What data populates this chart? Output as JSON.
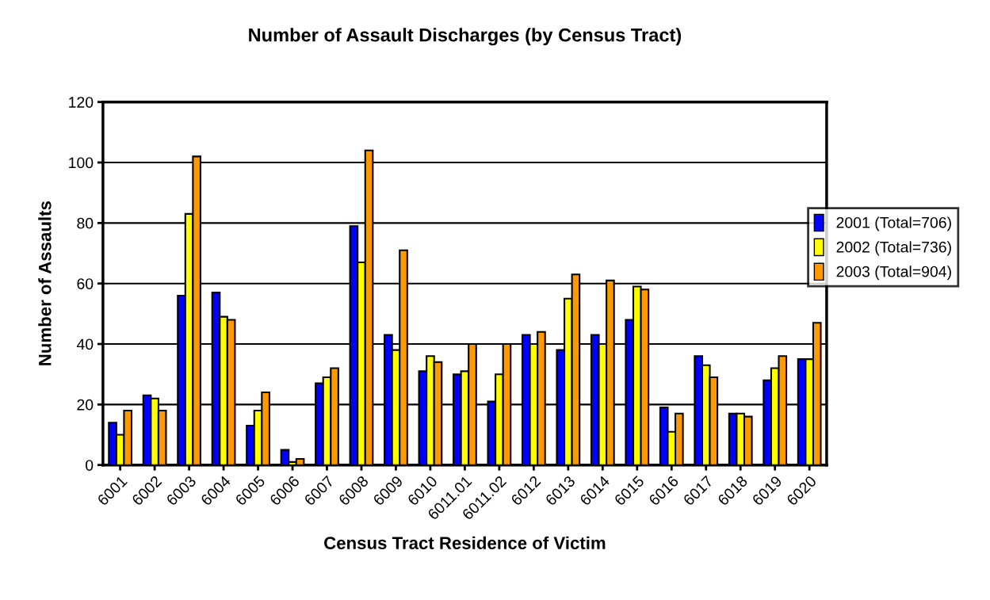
{
  "chart_data": {
    "type": "bar",
    "title": "Number of Assault Discharges (by Census Tract)",
    "xlabel": "Census Tract Residence of Victim",
    "ylabel": "Number of Assaults",
    "categories": [
      "6001",
      "6002",
      "6003",
      "6004",
      "6005",
      "6006",
      "6007",
      "6008",
      "6009",
      "6010",
      "6011.01",
      "6011.02",
      "6012",
      "6013",
      "6014",
      "6015",
      "6016",
      "6017",
      "6018",
      "6019",
      "6020"
    ],
    "series": [
      {
        "name": "2001 (Total=706)",
        "color": "#0000ff",
        "values": [
          14,
          23,
          56,
          57,
          13,
          5,
          27,
          79,
          43,
          31,
          30,
          21,
          43,
          38,
          43,
          48,
          19,
          36,
          17,
          28,
          35
        ]
      },
      {
        "name": "2002 (Total=736)",
        "color": "#ffff00",
        "values": [
          10,
          22,
          83,
          49,
          18,
          1,
          29,
          67,
          38,
          36,
          31,
          30,
          40,
          55,
          40,
          59,
          11,
          33,
          17,
          32,
          35
        ]
      },
      {
        "name": "2003 (Total=904)",
        "color": "#ff9900",
        "values": [
          18,
          18,
          102,
          48,
          24,
          2,
          32,
          104,
          71,
          34,
          40,
          40,
          44,
          63,
          61,
          58,
          17,
          29,
          16,
          36,
          47
        ]
      }
    ],
    "ylim": [
      0,
      120
    ],
    "yticks": [
      0,
      20,
      40,
      60,
      80,
      100,
      120
    ],
    "grid": "y",
    "legend": "right"
  }
}
